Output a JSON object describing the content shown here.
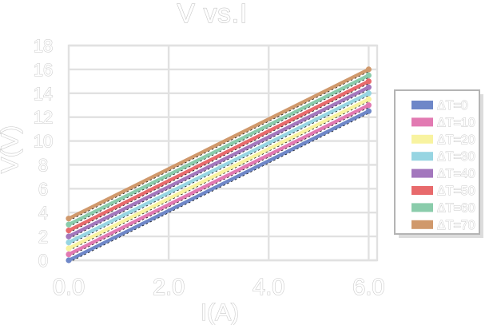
{
  "chart_data": {
    "type": "line",
    "title": "V vs.I",
    "xlabel": "I(A)",
    "ylabel": "V(V)",
    "xlim": [
      0,
      6.17
    ],
    "ylim": [
      0,
      18
    ],
    "grid": true,
    "legend_position": "right-outside",
    "x_ticks": [
      0,
      2,
      4,
      6
    ],
    "x_tick_labels": [
      "0.0",
      "2.0",
      "4.0",
      "6.0"
    ],
    "y_ticks": [
      0,
      2,
      4,
      6,
      8,
      10,
      12,
      14,
      16,
      18
    ],
    "y_tick_labels": [
      "0",
      "2",
      "4",
      "6",
      "8",
      "10",
      "12",
      "14",
      "16",
      "18"
    ],
    "x": [
      0,
      6
    ],
    "series": [
      {
        "name": "ΔT=0",
        "color": "#6e87c8",
        "values": [
          0.0,
          12.5
        ]
      },
      {
        "name": "ΔT=10",
        "color": "#e27ab2",
        "values": [
          0.5,
          13.0
        ]
      },
      {
        "name": "ΔT=20",
        "color": "#f8f3a0",
        "values": [
          1.0,
          13.5
        ]
      },
      {
        "name": "ΔT=30",
        "color": "#97d5e2",
        "values": [
          1.5,
          14.0
        ]
      },
      {
        "name": "ΔT=40",
        "color": "#a377bd",
        "values": [
          2.0,
          14.5
        ]
      },
      {
        "name": "ΔT=50",
        "color": "#e86a6c",
        "values": [
          2.5,
          15.0
        ]
      },
      {
        "name": "ΔT=60",
        "color": "#8accab",
        "values": [
          3.0,
          15.5
        ]
      },
      {
        "name": "ΔT=70",
        "color": "#d0996c",
        "values": [
          3.5,
          16.0
        ]
      }
    ],
    "trendlines": {
      "style": "dashed",
      "color": "#111111"
    }
  },
  "styles": {
    "background": "#ffffff",
    "grid_color": "#e1e1e1",
    "text_outline": "#c7c7c7",
    "legend_border": "#b4b4b4",
    "legend_fill": "#ffffff",
    "legend_shadow": "#dcdcdc"
  }
}
